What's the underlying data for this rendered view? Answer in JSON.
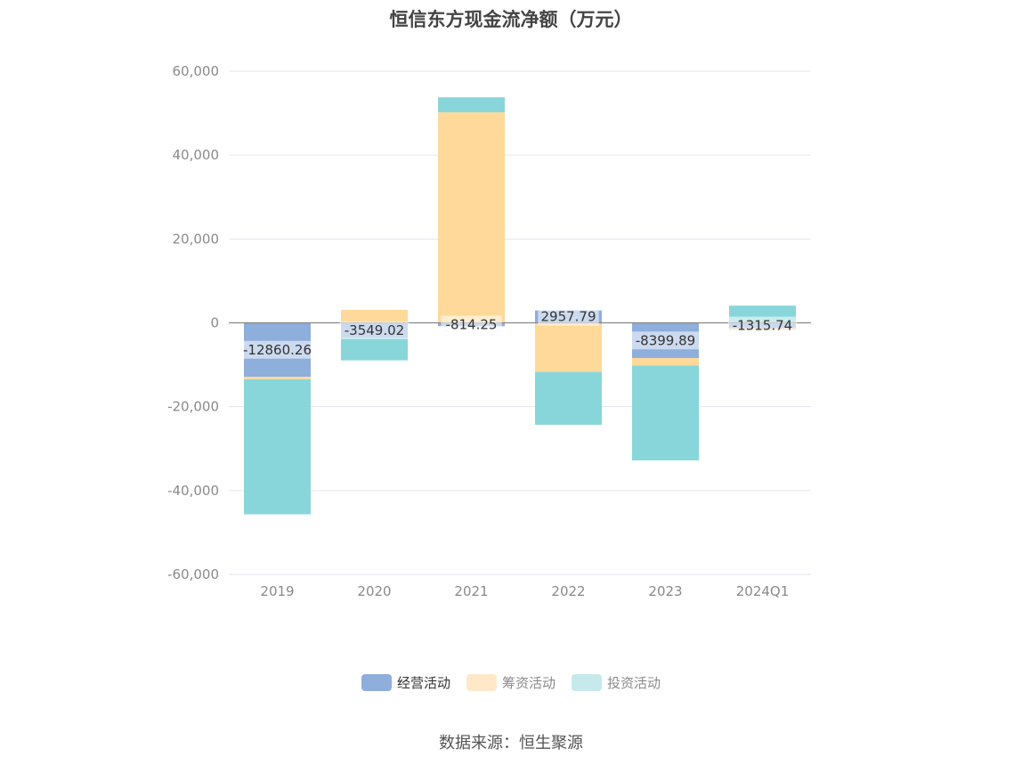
{
  "chart_data": {
    "type": "bar",
    "stacked": true,
    "title": "恒信东方现金流净额（万元）",
    "categories": [
      "2019",
      "2020",
      "2021",
      "2022",
      "2023",
      "2024Q1"
    ],
    "ylim": [
      -60000,
      60000
    ],
    "yticks": [
      60000,
      40000,
      20000,
      0,
      -20000,
      -40000,
      -60000
    ],
    "ytick_labels": [
      "60,000",
      "40,000",
      "20,000",
      "0",
      "-20,000",
      "-40,000",
      "-60,000"
    ],
    "grid": true,
    "legend_position": "bottom",
    "series": [
      {
        "name": "经营活动",
        "color": "#8eaedc",
        "values": [
          -12860.26,
          -3549.02,
          -814.25,
          2957.79,
          -8399.89,
          -1315.74
        ],
        "labels": [
          "-12860.26",
          "-3549.02",
          "-814.25",
          "2957.79",
          "-8399.89",
          "-1315.74"
        ]
      },
      {
        "name": "筹资活动",
        "color": "#ffd99a",
        "values": [
          -600,
          3100,
          50200,
          -11700,
          -1800,
          -400
        ]
      },
      {
        "name": "投资活动",
        "color": "#88d6da",
        "values": [
          -32200,
          -5400,
          3600,
          -12600,
          -22600,
          4100
        ]
      }
    ]
  },
  "legend_items": [
    {
      "label": "经营活动",
      "color": "#8eaedc",
      "active": true
    },
    {
      "label": "筹资活动",
      "color": "#ffe8c8",
      "active": false
    },
    {
      "label": "投资活动",
      "color": "#c6e9ec",
      "active": false
    }
  ],
  "source_text": "数据来源：恒生聚源"
}
